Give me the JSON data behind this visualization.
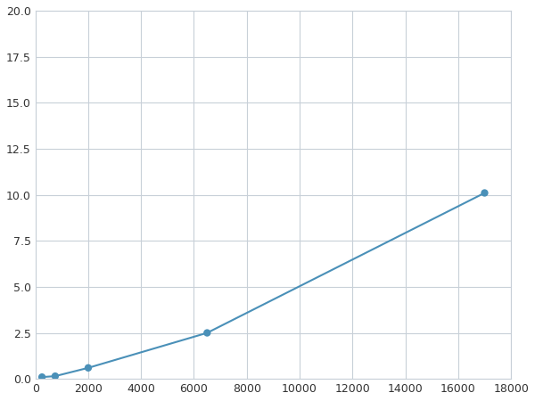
{
  "x_data": [
    250,
    750,
    2000,
    6500,
    17000
  ],
  "y_data": [
    0.1,
    0.15,
    0.6,
    2.5,
    10.1
  ],
  "line_color": "#4a90b8",
  "marker_color": "#4a90b8",
  "marker_size": 6,
  "line_width": 1.5,
  "xlim": [
    0,
    18000
  ],
  "ylim": [
    0,
    20.0
  ],
  "xticks": [
    0,
    2000,
    4000,
    6000,
    8000,
    10000,
    12000,
    14000,
    16000,
    18000
  ],
  "yticks": [
    0.0,
    2.5,
    5.0,
    7.5,
    10.0,
    12.5,
    15.0,
    17.5,
    20.0
  ],
  "grid_color": "#c8d0d8",
  "background_color": "#ffffff",
  "figure_background": "#ffffff"
}
